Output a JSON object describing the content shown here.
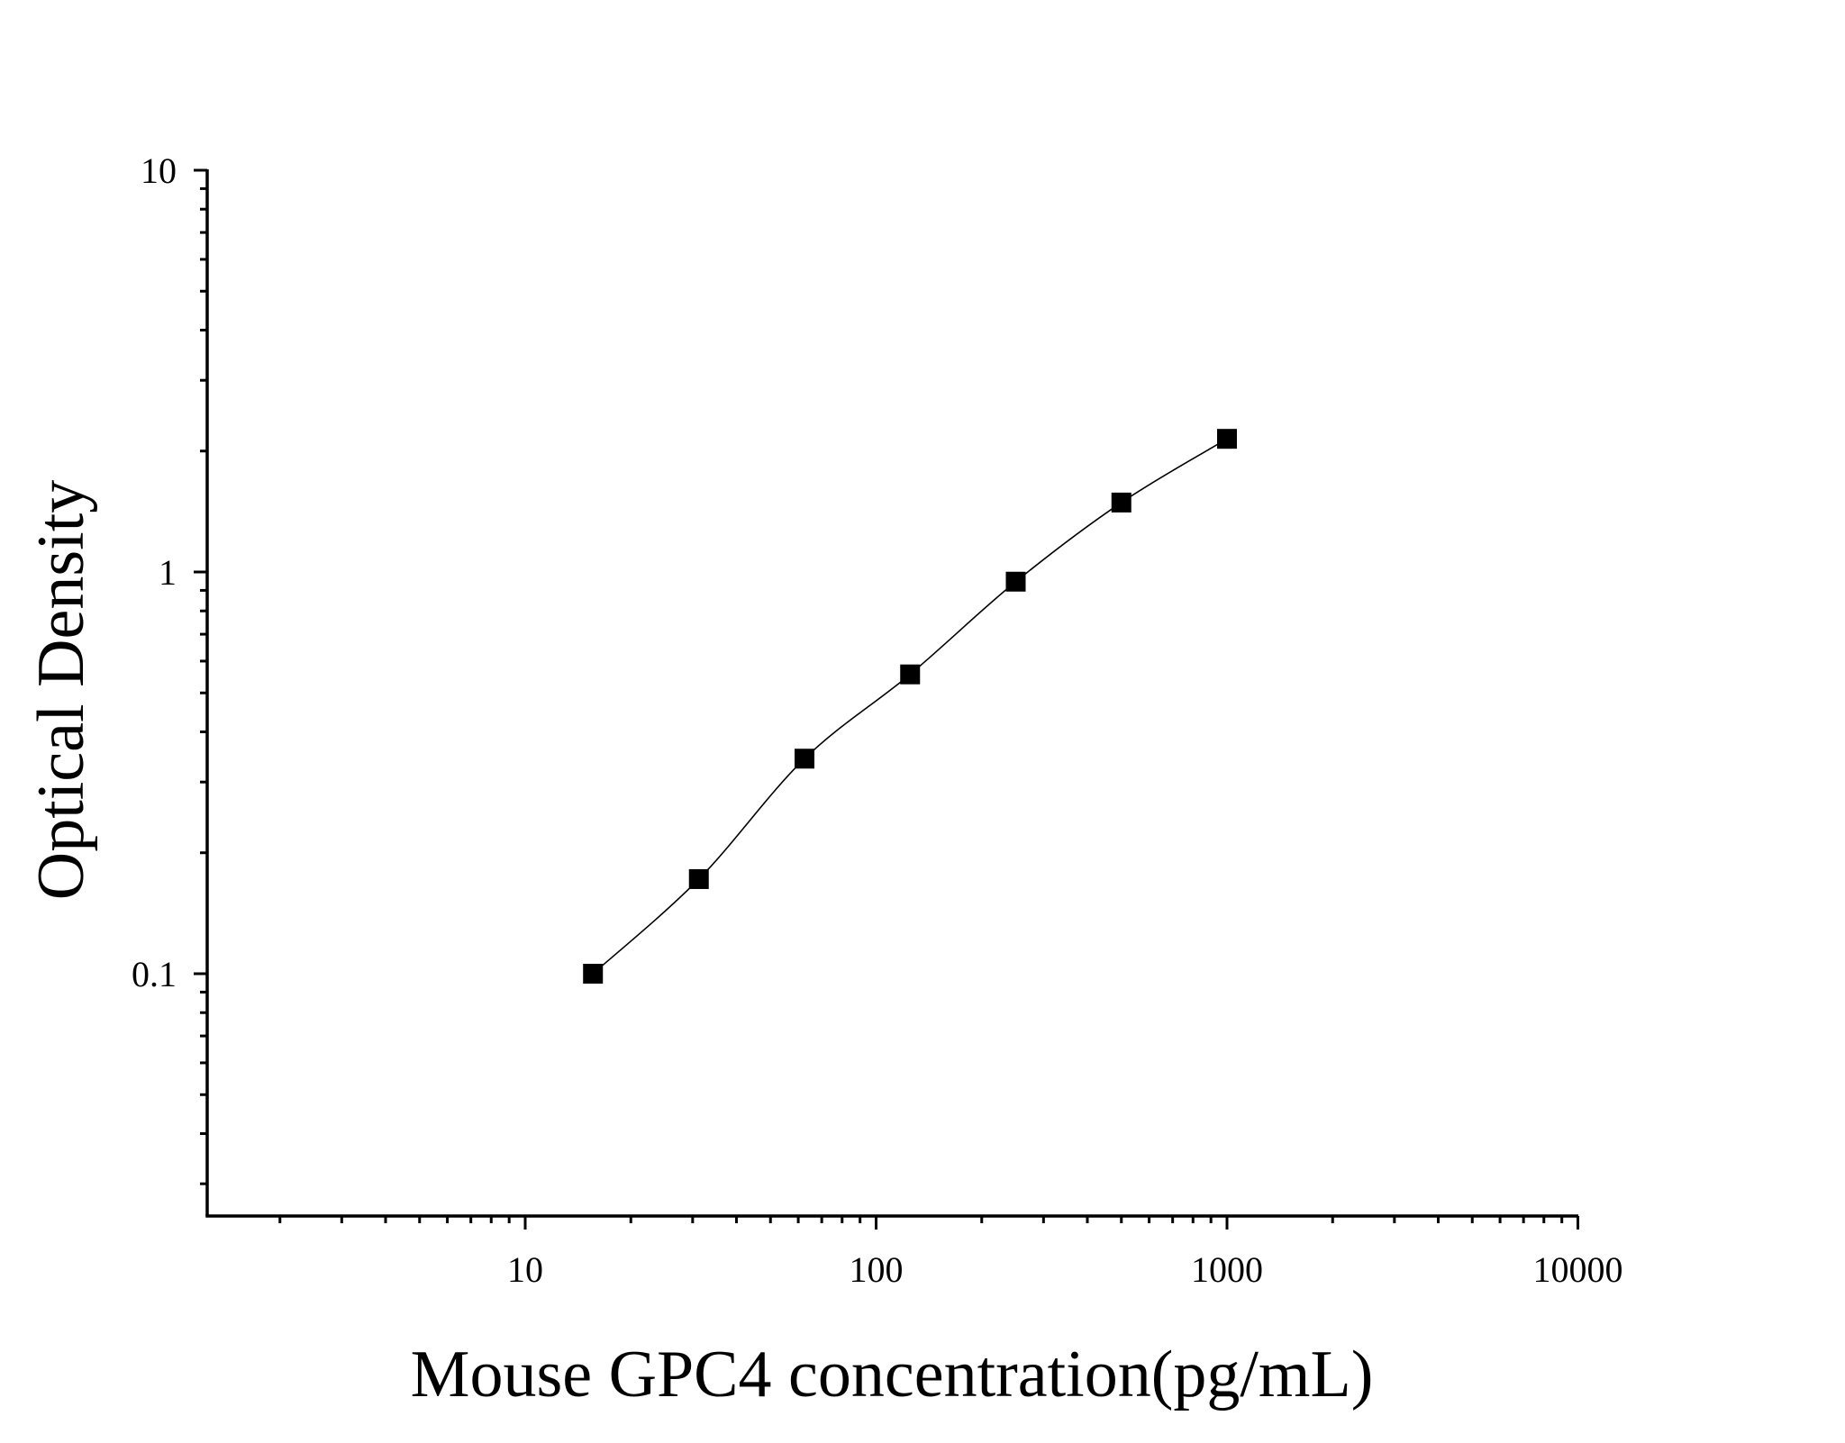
{
  "chart_data": {
    "type": "scatter",
    "title": "",
    "xlabel": "Mouse GPC4 concentration(pg/mL)",
    "ylabel": "Optical Density",
    "x_scale": "log",
    "y_scale": "log",
    "xlim": [
      1.2,
      10000
    ],
    "ylim": [
      0.03,
      10
    ],
    "x_tick_labels": [
      "10",
      "100",
      "1000",
      "10000"
    ],
    "y_tick_labels": [
      "0.1",
      "1",
      "10"
    ],
    "grid": false,
    "legend": "none",
    "marker_color": "#000000",
    "line_color": "#000000",
    "series": [
      {
        "x": [
          15.6,
          31.25,
          62.5,
          125,
          250,
          500,
          1000
        ],
        "y": [
          0.1,
          0.172,
          0.343,
          0.556,
          0.946,
          1.489,
          2.145
        ]
      }
    ]
  }
}
